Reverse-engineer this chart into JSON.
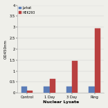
{
  "categories": [
    "Control",
    "1 Day",
    "3 Day",
    "Ring"
  ],
  "series": [
    {
      "name": "Jurkat",
      "color": "#5b7db8",
      "hatch": "",
      "values": [
        0.28,
        0.3,
        0.3,
        0.3
      ]
    },
    {
      "name": "HEK293",
      "color": "#b94040",
      "hatch": "///",
      "values": [
        0.1,
        0.65,
        1.45,
        2.95
      ]
    }
  ],
  "xlabel": "Nuclear Lysate",
  "ylabel": "OD450nm",
  "ylim": [
    0,
    4
  ],
  "yticks": [
    0,
    0.5,
    1,
    1.5,
    2,
    2.5,
    3,
    3.5,
    4
  ],
  "ytick_labels": [
    "0",
    "0.5",
    "1",
    "1.5",
    "2",
    "2.5",
    "3",
    "3.5",
    "4"
  ],
  "legend_loc": "upper left",
  "bar_width": 0.25,
  "figsize": [
    1.56,
    1.56
  ],
  "dpi": 100,
  "background_color": "#efefea",
  "font_size": 3.8,
  "axis_label_size": 4.5,
  "ylabel_fontsize": 4.0
}
